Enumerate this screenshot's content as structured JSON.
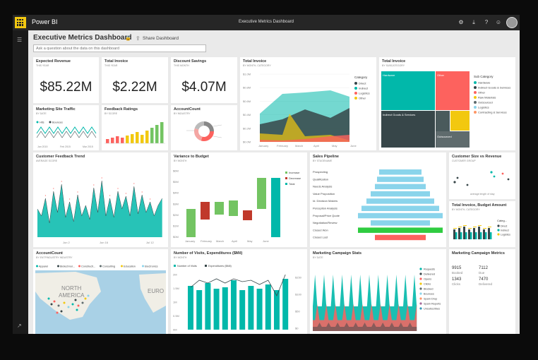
{
  "app": {
    "brand": "Power BI",
    "window_title": "Executive Metrics Dashboard"
  },
  "header": {
    "dashboard_title": "Executive Metrics Dashboard",
    "share_label": "Share Dashboard",
    "qa_placeholder": "Ask a question about the data on this dashboard"
  },
  "tiles": {
    "expected_revenue": {
      "title": "Expected Revenue",
      "subtitle": "THIS YEAR",
      "value": "$85.22M"
    },
    "total_invoice_kpi": {
      "title": "Total Invoice",
      "subtitle": "THIS YEAR",
      "value": "$2.22M"
    },
    "discount_savings": {
      "title": "Discount Savings",
      "subtitle": "THIS MONTH",
      "value": "$4.07M"
    },
    "total_invoice_area": {
      "title": "Total Invoice",
      "subtitle": "BY MONTH, CATEGORY",
      "legend_title": "Category",
      "legend": [
        "Direct",
        "Indirect",
        "Logistics",
        "Other"
      ],
      "y_ticks": [
        "$1.0M",
        "$0.8M",
        "$0.6M",
        "$0.4M",
        "$0.2M",
        "$0.0M"
      ],
      "x_ticks": [
        "January",
        "February",
        "March",
        "April",
        "May",
        "June"
      ]
    },
    "total_invoice_treemap": {
      "title": "Total Invoice",
      "subtitle": "BY SUBCATEGORY",
      "legend_title": "Sub Category",
      "legend": [
        "Hardware",
        "Indirect Goods & Services",
        "Other",
        "Raw Materials",
        "Outsourced",
        "Logistics",
        "Contracting & Services"
      ],
      "cells": [
        "Hardware",
        "Other",
        "Indirect Goods & Services",
        "Outsourced"
      ]
    },
    "marketing_traffic": {
      "title": "Marketing Site Traffic",
      "subtitle": "BY DATE",
      "legend": [
        "Hits",
        "Bounces"
      ],
      "x_ticks": [
        "Jan 2015",
        "Feb 2015",
        "Mar 2015"
      ]
    },
    "feedback_ratings": {
      "title": "Feedback Ratings",
      "subtitle": "BY SCORE"
    },
    "account_count_donut": {
      "title": "AccountCount",
      "subtitle": "BY INDUSTRY"
    },
    "customer_feedback": {
      "title": "Customer Feedback Trend",
      "subtitle": "AVERAGE SCORE",
      "x_ticks": [
        "Jun 2",
        "Jun 16",
        "Jul 12"
      ]
    },
    "variance_budget": {
      "title": "Variance to Budget",
      "subtitle": "BY MONTH",
      "legend": [
        "Increase",
        "Decrease",
        "Total"
      ],
      "y_ticks": [
        "$6M",
        "$5M",
        "$4M",
        "$3M",
        "$2M",
        "$1M",
        "$0M"
      ],
      "x_ticks": [
        "January",
        "February",
        "March",
        "April",
        "May",
        "June"
      ]
    },
    "sales_pipeline": {
      "title": "Sales Pipeline",
      "subtitle": "BY STAGENAME",
      "stages": [
        "Prospecting",
        "Qualification",
        "Needs Analysis",
        "Value Proposition",
        "Id. Decision Makers",
        "Perception Analysis",
        "Proposal/Price Quote",
        "Negotiation/Review",
        "Closed Won",
        "Closed Lost"
      ]
    },
    "customer_size": {
      "title": "Customer Size vs Revenue",
      "subtitle": "CUSTOMER GROUP",
      "x_label": "average length of stay"
    },
    "invoice_budget": {
      "title": "Total Invoice, Budget Amount",
      "subtitle": "BY MONTH, CATEGORY",
      "legend_title": "Categ...",
      "legend": [
        "Direct",
        "Indirect",
        "Logistics"
      ]
    },
    "account_map": {
      "title": "AccountCount",
      "subtitle": "BY ENTPINDUSTRY INDUSTRY",
      "legend": [
        "Apparel",
        "Biotechnol...",
        "Constructi...",
        "Consulting",
        "Education",
        "Electronics"
      ],
      "map_labels": [
        "NORTH",
        "AMERICA",
        "EURO"
      ]
    },
    "visits_expenditures": {
      "title": "Number of Visits, Expenditures ($Mil)",
      "subtitle": "BY MONTH",
      "legend": [
        "Number of Visits",
        "Expenditures ($Mil)"
      ],
      "y_ticks": [
        "2M",
        "1.5M",
        "1M",
        "0.5M",
        "0M"
      ],
      "y2_ticks": [
        "$150",
        "$100",
        "$50",
        "$0"
      ]
    },
    "campaign_stats": {
      "title": "Marketing Campaign Stats",
      "subtitle": "BY DATE",
      "legend": [
        "Requests",
        "Delivered",
        "Opens",
        "Clicks",
        "Blocked",
        "Bounces",
        "Spam Drop",
        "Spam Reports",
        "Unsubscribes"
      ]
    },
    "campaign_metrics": {
      "title": "Marketing Campaign Metrics",
      "metrics": [
        {
          "value": "9915",
          "label": "Booked"
        },
        {
          "value": "7112",
          "label": "Due"
        },
        {
          "value": "1343",
          "label": "Clicks"
        },
        {
          "value": "7470",
          "label": "Delivered"
        }
      ]
    }
  },
  "colors": {
    "teal": "#01b8aa",
    "dark": "#374649",
    "red": "#fd625e",
    "yellow": "#f2c80f",
    "gray": "#5f6b6d",
    "blue": "#8ad4eb",
    "green": "#2fcc40"
  }
}
